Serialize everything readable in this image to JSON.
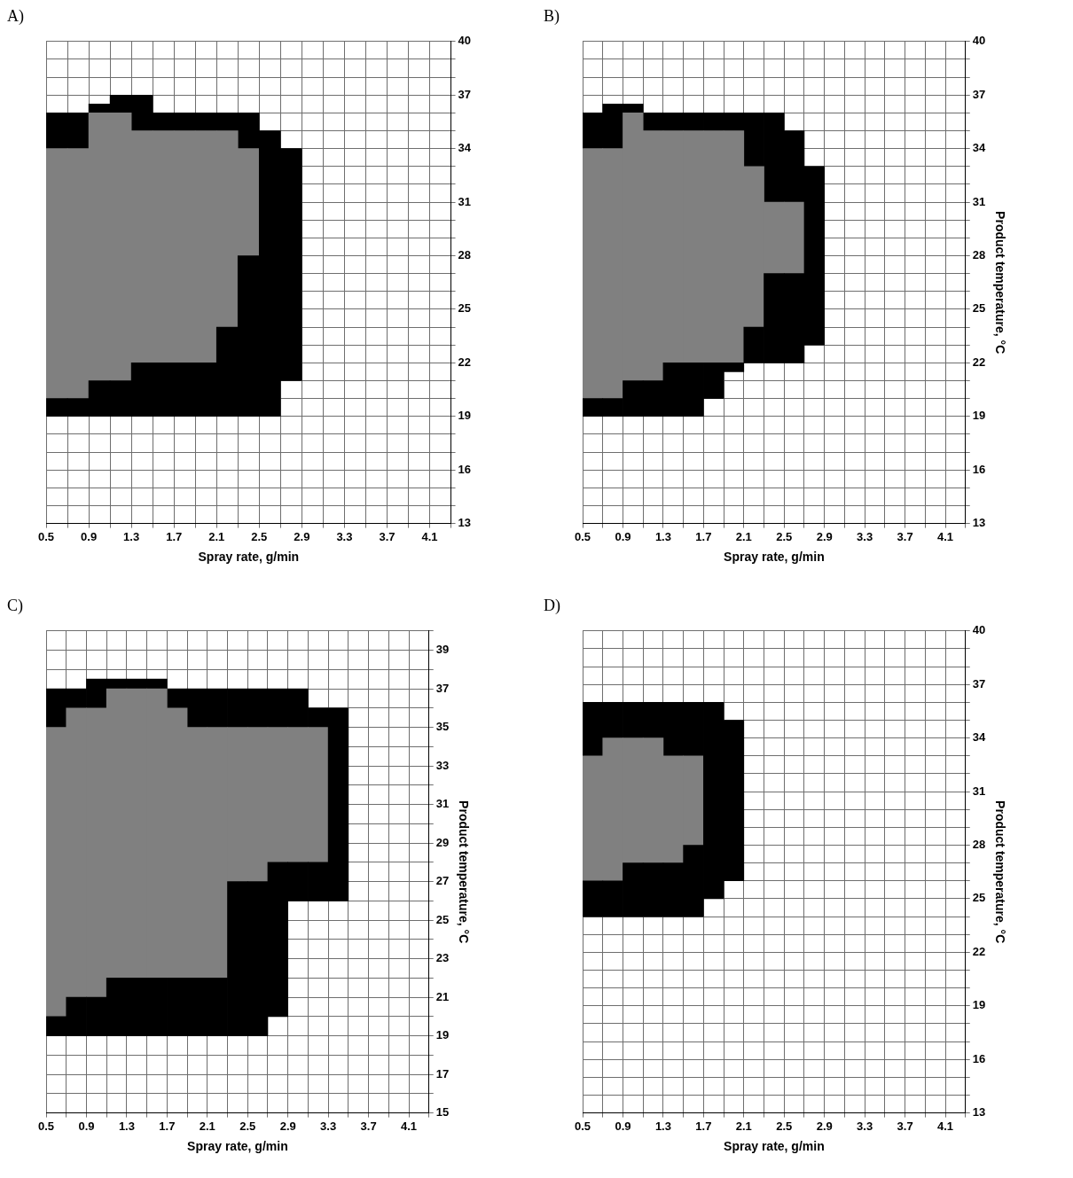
{
  "chart_data": [
    {
      "type": "bar",
      "title": "A)",
      "xlabel": "Spray rate, g/min",
      "grid": true,
      "x": [
        0.6,
        0.8,
        1.0,
        1.2,
        1.4,
        1.6,
        1.8,
        2.0,
        2.2,
        2.4,
        2.6,
        2.8
      ],
      "series": [
        {
          "color": "#000000",
          "base": [
            19,
            19,
            19,
            19,
            19,
            19,
            19,
            19,
            19,
            19,
            19,
            21
          ],
          "values": [
            1,
            1,
            2,
            2,
            3,
            3,
            3,
            3,
            5,
            9,
            16,
            13
          ]
        },
        {
          "color": "#808080",
          "base": [
            20,
            20,
            21,
            21,
            22,
            22,
            22,
            22,
            24,
            28,
            null,
            null
          ],
          "values": [
            14,
            14,
            15,
            15,
            13,
            13,
            13,
            13,
            11,
            6,
            null,
            null
          ]
        },
        {
          "color": "#000000",
          "base": [
            34,
            34,
            36,
            36,
            35,
            35,
            35,
            35,
            35,
            34,
            null,
            null
          ],
          "values": [
            2,
            2,
            0.5,
            1,
            2,
            1,
            1,
            1,
            1,
            2,
            null,
            null
          ]
        }
      ],
      "xlim": [
        0.5,
        4.3
      ],
      "xticks": [
        0.5,
        {
          "value": 0.7,
          "label": null
        },
        0.9,
        {
          "value": 1.1,
          "label": null
        },
        1.3,
        {
          "value": 1.5,
          "label": null
        },
        1.7,
        {
          "value": 1.9,
          "label": null
        },
        2.1,
        {
          "value": 2.3,
          "label": null
        },
        2.5,
        {
          "value": 2.7,
          "label": null
        },
        2.9,
        {
          "value": 3.1,
          "label": null
        },
        3.3,
        {
          "value": 3.5,
          "label": null
        },
        3.7,
        {
          "value": 3.9,
          "label": null
        },
        4.1,
        {
          "value": 4.3,
          "label": null
        }
      ],
      "ylim": [
        13,
        40
      ],
      "yticks": [
        13,
        {
          "value": 14,
          "label": null
        },
        {
          "value": 15,
          "label": null
        },
        16,
        {
          "value": 17,
          "label": null
        },
        {
          "value": 18,
          "label": null
        },
        19,
        {
          "value": 20,
          "label": null
        },
        {
          "value": 21,
          "label": null
        },
        22,
        {
          "value": 23,
          "label": null
        },
        {
          "value": 24,
          "label": null
        },
        25,
        {
          "value": 26,
          "label": null
        },
        {
          "value": 27,
          "label": null
        },
        28,
        {
          "value": 29,
          "label": null
        },
        {
          "value": 30,
          "label": null
        },
        31,
        {
          "value": 32,
          "label": null
        },
        {
          "value": 33,
          "label": null
        },
        34,
        {
          "value": 35,
          "label": null
        },
        {
          "value": 36,
          "label": null
        },
        37,
        {
          "value": 38,
          "label": null
        },
        {
          "value": 39,
          "label": null
        },
        40
      ]
    },
    {
      "type": "bar",
      "title": "B)",
      "xlabel": "Spray rate, g/min",
      "ylabel": "Product temperature, °C",
      "grid": true,
      "x": [
        0.6,
        0.8,
        1.0,
        1.2,
        1.4,
        1.6,
        1.8,
        2.0,
        2.2,
        2.4,
        2.6,
        2.8
      ],
      "series": [
        {
          "color": "#000000",
          "base": [
            19,
            19,
            19,
            19,
            19,
            19,
            20,
            21.5,
            22,
            22,
            22,
            23
          ],
          "values": [
            1,
            1,
            2,
            2,
            3,
            3,
            2,
            0.5,
            2,
            5,
            5,
            10
          ]
        },
        {
          "color": "#808080",
          "base": [
            20,
            20,
            21,
            21,
            22,
            22,
            22,
            22,
            24,
            27,
            27,
            null
          ],
          "values": [
            14,
            14,
            15,
            14,
            13,
            13,
            13,
            13,
            9,
            4,
            4,
            null
          ]
        },
        {
          "color": "#000000",
          "base": [
            34,
            34,
            36,
            35,
            35,
            35,
            35,
            35,
            33,
            31,
            31,
            null
          ],
          "values": [
            2,
            2.5,
            0.5,
            1,
            1,
            1,
            1,
            1,
            3,
            5,
            4,
            null
          ]
        }
      ],
      "xlim": [
        0.5,
        4.3
      ],
      "xticks": [
        0.5,
        {
          "value": 0.7,
          "label": null
        },
        0.9,
        {
          "value": 1.1,
          "label": null
        },
        1.3,
        {
          "value": 1.5,
          "label": null
        },
        1.7,
        {
          "value": 1.9,
          "label": null
        },
        2.1,
        {
          "value": 2.3,
          "label": null
        },
        2.5,
        {
          "value": 2.7,
          "label": null
        },
        2.9,
        {
          "value": 3.1,
          "label": null
        },
        3.3,
        {
          "value": 3.5,
          "label": null
        },
        3.7,
        {
          "value": 3.9,
          "label": null
        },
        4.1,
        {
          "value": 4.3,
          "label": null
        }
      ],
      "ylim": [
        13,
        40
      ],
      "yticks": [
        13,
        {
          "value": 14,
          "label": null
        },
        {
          "value": 15,
          "label": null
        },
        16,
        {
          "value": 17,
          "label": null
        },
        {
          "value": 18,
          "label": null
        },
        19,
        {
          "value": 20,
          "label": null
        },
        {
          "value": 21,
          "label": null
        },
        22,
        {
          "value": 23,
          "label": null
        },
        {
          "value": 24,
          "label": null
        },
        25,
        {
          "value": 26,
          "label": null
        },
        {
          "value": 27,
          "label": null
        },
        28,
        {
          "value": 29,
          "label": null
        },
        {
          "value": 30,
          "label": null
        },
        31,
        {
          "value": 32,
          "label": null
        },
        {
          "value": 33,
          "label": null
        },
        34,
        {
          "value": 35,
          "label": null
        },
        {
          "value": 36,
          "label": null
        },
        37,
        {
          "value": 38,
          "label": null
        },
        {
          "value": 39,
          "label": null
        },
        40
      ]
    },
    {
      "type": "bar",
      "title": "C)",
      "xlabel": "Spray rate, g/min",
      "ylabel": "Product temperature, °C",
      "grid": true,
      "x": [
        0.6,
        0.8,
        1.0,
        1.2,
        1.4,
        1.6,
        1.8,
        2.0,
        2.2,
        2.4,
        2.6,
        2.8,
        3.0,
        3.2,
        3.4
      ],
      "series": [
        {
          "color": "#000000",
          "base": [
            19,
            19,
            19,
            19,
            19,
            19,
            19,
            19,
            19,
            19,
            19,
            20,
            26,
            26,
            26
          ],
          "values": [
            1,
            2,
            2,
            3,
            3,
            3,
            3,
            3,
            3,
            8,
            8,
            8,
            2,
            2,
            10
          ]
        },
        {
          "color": "#808080",
          "base": [
            20,
            21,
            21,
            22,
            22,
            22,
            22,
            22,
            22,
            27,
            27,
            28,
            28,
            28,
            null
          ],
          "values": [
            15,
            15,
            15,
            15,
            15,
            15,
            14,
            13,
            13,
            8,
            8,
            7,
            7,
            7,
            null
          ]
        },
        {
          "color": "#000000",
          "base": [
            35,
            36,
            36,
            37,
            37,
            37,
            36,
            35,
            35,
            35,
            35,
            35,
            35,
            35,
            null
          ],
          "values": [
            2,
            1,
            1.5,
            0.5,
            0.5,
            0.5,
            1,
            2,
            2,
            2,
            2,
            2,
            2,
            1,
            null
          ]
        }
      ],
      "xlim": [
        0.5,
        4.3
      ],
      "xticks": [
        0.5,
        {
          "value": 0.7,
          "label": null
        },
        0.9,
        {
          "value": 1.1,
          "label": null
        },
        1.3,
        {
          "value": 1.5,
          "label": null
        },
        1.7,
        {
          "value": 1.9,
          "label": null
        },
        2.1,
        {
          "value": 2.3,
          "label": null
        },
        2.5,
        {
          "value": 2.7,
          "label": null
        },
        2.9,
        {
          "value": 3.1,
          "label": null
        },
        3.3,
        {
          "value": 3.5,
          "label": null
        },
        3.7,
        {
          "value": 3.9,
          "label": null
        },
        4.1,
        {
          "value": 4.3,
          "label": null
        }
      ],
      "ylim": [
        15,
        40
      ],
      "yticks": [
        15,
        {
          "value": 16,
          "label": null
        },
        17,
        {
          "value": 18,
          "label": null
        },
        19,
        {
          "value": 20,
          "label": null
        },
        21,
        {
          "value": 22,
          "label": null
        },
        23,
        {
          "value": 24,
          "label": null
        },
        25,
        {
          "value": 26,
          "label": null
        },
        27,
        {
          "value": 28,
          "label": null
        },
        29,
        {
          "value": 30,
          "label": null
        },
        31,
        {
          "value": 32,
          "label": null
        },
        33,
        {
          "value": 34,
          "label": null
        },
        35,
        {
          "value": 36,
          "label": null
        },
        37,
        {
          "value": 38,
          "label": null
        },
        39,
        {
          "value": 40,
          "label": null
        }
      ]
    },
    {
      "type": "bar",
      "title": "D)",
      "xlabel": "Spray rate, g/min",
      "ylabel": "Product temperature, °C",
      "grid": true,
      "x": [
        0.6,
        0.8,
        1.0,
        1.2,
        1.4,
        1.6,
        1.8,
        2.0
      ],
      "series": [
        {
          "color": "#000000",
          "base": [
            24,
            24,
            24,
            24,
            24,
            24,
            25,
            26
          ],
          "values": [
            2,
            2,
            3,
            3,
            3,
            4,
            11,
            9
          ]
        },
        {
          "color": "#808080",
          "base": [
            26,
            26,
            27,
            27,
            27,
            28,
            null,
            null
          ],
          "values": [
            7,
            8,
            7,
            7,
            6,
            5,
            null,
            null
          ]
        },
        {
          "color": "#000000",
          "base": [
            33,
            34,
            34,
            34,
            33,
            33,
            null,
            null
          ],
          "values": [
            3,
            2,
            2,
            2,
            3,
            3,
            null,
            null
          ]
        }
      ],
      "xlim": [
        0.5,
        4.3
      ],
      "xticks": [
        0.5,
        {
          "value": 0.7,
          "label": null
        },
        0.9,
        {
          "value": 1.1,
          "label": null
        },
        1.3,
        {
          "value": 1.5,
          "label": null
        },
        1.7,
        {
          "value": 1.9,
          "label": null
        },
        2.1,
        {
          "value": 2.3,
          "label": null
        },
        2.5,
        {
          "value": 2.7,
          "label": null
        },
        2.9,
        {
          "value": 3.1,
          "label": null
        },
        3.3,
        {
          "value": 3.5,
          "label": null
        },
        3.7,
        {
          "value": 3.9,
          "label": null
        },
        4.1,
        {
          "value": 4.3,
          "label": null
        }
      ],
      "ylim": [
        13,
        40
      ],
      "yticks": [
        13,
        {
          "value": 14,
          "label": null
        },
        {
          "value": 15,
          "label": null
        },
        16,
        {
          "value": 17,
          "label": null
        },
        {
          "value": 18,
          "label": null
        },
        19,
        {
          "value": 20,
          "label": null
        },
        {
          "value": 21,
          "label": null
        },
        22,
        {
          "value": 23,
          "label": null
        },
        {
          "value": 24,
          "label": null
        },
        25,
        {
          "value": 26,
          "label": null
        },
        {
          "value": 27,
          "label": null
        },
        28,
        {
          "value": 29,
          "label": null
        },
        {
          "value": 30,
          "label": null
        },
        31,
        {
          "value": 32,
          "label": null
        },
        {
          "value": 33,
          "label": null
        },
        34,
        {
          "value": 35,
          "label": null
        },
        {
          "value": 36,
          "label": null
        },
        37,
        {
          "value": 38,
          "label": null
        },
        {
          "value": 39,
          "label": null
        },
        40
      ]
    }
  ]
}
